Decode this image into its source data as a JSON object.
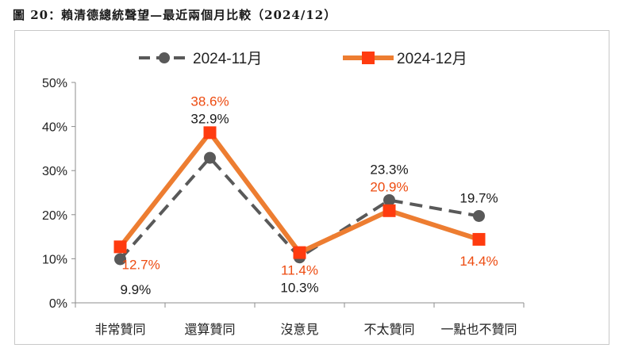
{
  "figure": {
    "title": "圖 20：賴清德總統聲望—最近兩個月比較（2024/12）"
  },
  "chart_data": {
    "type": "line",
    "categories": [
      "非常贊同",
      "還算贊同",
      "沒意見",
      "不太贊同",
      "一點也不贊同"
    ],
    "ylim": [
      0,
      50
    ],
    "yticks": [
      0,
      10,
      20,
      30,
      40,
      50
    ],
    "ytick_labels": [
      "0%",
      "10%",
      "20%",
      "30%",
      "40%",
      "50%"
    ],
    "grid": false,
    "legend_position": "top",
    "series": [
      {
        "name": "2024-11月",
        "values": [
          9.9,
          32.9,
          10.3,
          23.3,
          19.7
        ],
        "labels": [
          "9.9%",
          "32.9%",
          "10.3%",
          "23.3%",
          "19.7%"
        ],
        "color": "#595959",
        "label_color": "#1a1a1a",
        "style": "dashed",
        "marker": "circle"
      },
      {
        "name": "2024-12月",
        "values": [
          12.7,
          38.6,
          11.4,
          20.9,
          14.4
        ],
        "labels": [
          "12.7%",
          "38.6%",
          "11.4%",
          "20.9%",
          "14.4%"
        ],
        "color": "#ED7D31",
        "label_color": "#ED4B10",
        "marker_color": "#FF3B0F",
        "style": "solid",
        "marker": "square"
      }
    ]
  }
}
